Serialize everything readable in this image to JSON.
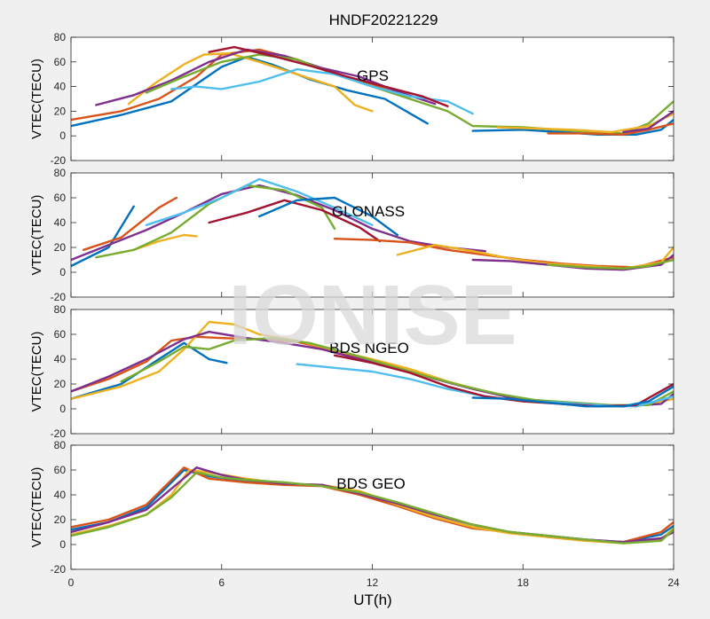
{
  "figure_title": "HNDF20221229",
  "x_label": "UT(h)",
  "watermark": "IONISE",
  "colors": [
    "#0072bd",
    "#d95319",
    "#edb120",
    "#7e2f8e",
    "#77ac30",
    "#4dbeee",
    "#a2142f"
  ],
  "chart_data": [
    {
      "type": "line",
      "title": "GPS",
      "xlabel": "",
      "ylabel": "VTEC(TECU)",
      "xlim": [
        0,
        24
      ],
      "ylim": [
        -20,
        80
      ],
      "xticks": [
        0,
        6,
        12,
        18,
        24
      ],
      "yticks": [
        -20,
        0,
        20,
        40,
        60,
        80
      ],
      "grid": false,
      "series": [
        {
          "x": [
            0,
            2,
            4,
            5,
            6,
            7,
            8,
            9.5,
            11,
            12.5,
            14.2
          ],
          "y": [
            8,
            17,
            28,
            42,
            56,
            64,
            58,
            46,
            37,
            30,
            10
          ]
        },
        {
          "x": [
            0,
            2,
            3.5,
            5,
            6,
            7.5,
            9,
            10.5,
            12,
            13.5
          ],
          "y": [
            13,
            20,
            30,
            48,
            66,
            70,
            62,
            50,
            42,
            30
          ]
        },
        {
          "x": [
            2.3,
            3.3,
            4.5,
            5.3,
            6.3,
            7.5,
            9,
            10.5,
            11.3,
            12
          ],
          "y": [
            26,
            42,
            58,
            66,
            67,
            60,
            50,
            40,
            25,
            20
          ]
        },
        {
          "x": [
            1,
            2.5,
            4,
            5.5,
            7,
            8.5,
            10,
            11.5,
            13,
            14.5
          ],
          "y": [
            25,
            33,
            45,
            60,
            70,
            65,
            55,
            48,
            36,
            26
          ]
        },
        {
          "x": [
            3,
            4.5,
            6,
            7.5,
            9,
            10.5,
            12,
            13.5,
            15,
            16,
            18,
            20,
            22,
            23,
            24
          ],
          "y": [
            35,
            48,
            60,
            66,
            62,
            50,
            40,
            30,
            20,
            8,
            7,
            4,
            2,
            10,
            28
          ]
        },
        {
          "x": [
            4,
            5,
            6,
            7.5,
            9,
            10.5,
            12,
            13.5,
            15,
            16
          ],
          "y": [
            38,
            40,
            38,
            44,
            54,
            50,
            40,
            32,
            28,
            18
          ]
        },
        {
          "x": [
            5.5,
            6.5,
            8,
            9.5,
            11,
            12.5,
            14,
            15
          ],
          "y": [
            68,
            72,
            65,
            57,
            48,
            40,
            32,
            24
          ]
        },
        {
          "x": [
            16,
            18,
            19.5,
            21,
            22.5,
            23.5,
            24
          ],
          "y": [
            4,
            5,
            3,
            1,
            1,
            5,
            13
          ]
        },
        {
          "x": [
            19,
            20.5,
            22,
            23,
            24
          ],
          "y": [
            2,
            2,
            1,
            5,
            10
          ]
        },
        {
          "x": [
            17,
            18.5,
            20,
            21.5,
            23,
            24
          ],
          "y": [
            7,
            6,
            5,
            3,
            8,
            18
          ]
        },
        {
          "x": [
            22,
            23,
            24
          ],
          "y": [
            3,
            6,
            20
          ]
        }
      ]
    },
    {
      "type": "line",
      "title": "GLONASS",
      "xlabel": "",
      "ylabel": "VTEC(TECU)",
      "xlim": [
        0,
        24
      ],
      "ylim": [
        -20,
        80
      ],
      "xticks": [
        0,
        6,
        12,
        18,
        24
      ],
      "yticks": [
        -20,
        0,
        20,
        40,
        60,
        80
      ],
      "grid": false,
      "series": [
        {
          "x": [
            0,
            1.5,
            2.5
          ],
          "y": [
            5,
            20,
            53
          ]
        },
        {
          "x": [
            0.5,
            2,
            3.5,
            4.2
          ],
          "y": [
            18,
            28,
            52,
            60
          ]
        },
        {
          "x": [
            2.5,
            3.5,
            4.5,
            5
          ],
          "y": [
            18,
            25,
            30,
            29
          ]
        },
        {
          "x": [
            0,
            1.5,
            3,
            4.5,
            6,
            7.5,
            9,
            10.5,
            12,
            13.5,
            15,
            16.5
          ],
          "y": [
            10,
            22,
            34,
            48,
            63,
            70,
            62,
            50,
            35,
            25,
            20,
            17
          ]
        },
        {
          "x": [
            1,
            2.5,
            4,
            5.5,
            7,
            8.5,
            10,
            10.5
          ],
          "y": [
            12,
            18,
            32,
            55,
            70,
            66,
            52,
            35
          ]
        },
        {
          "x": [
            3,
            4.5,
            6,
            7.5,
            9,
            10.5,
            12
          ],
          "y": [
            38,
            48,
            60,
            75,
            65,
            52,
            38
          ]
        },
        {
          "x": [
            5.5,
            7,
            8.5,
            10,
            11.5,
            12.3
          ],
          "y": [
            40,
            48,
            58,
            50,
            36,
            25
          ]
        },
        {
          "x": [
            7.5,
            9,
            10.5,
            12,
            13
          ],
          "y": [
            45,
            58,
            60,
            45,
            30
          ]
        },
        {
          "x": [
            10.5,
            12,
            13.5,
            15,
            16.5,
            18,
            19.5,
            21,
            22.5,
            24
          ],
          "y": [
            27,
            26,
            24,
            18,
            14,
            10,
            7,
            5,
            4,
            12
          ]
        },
        {
          "x": [
            13,
            14.5,
            16,
            17.5,
            19,
            20.5,
            22,
            23.5,
            24
          ],
          "y": [
            14,
            22,
            17,
            11,
            7,
            5,
            3,
            8,
            20
          ]
        },
        {
          "x": [
            16,
            17.5,
            19,
            20.5,
            22,
            23.5,
            24
          ],
          "y": [
            10,
            9,
            6,
            3,
            2,
            6,
            14
          ]
        },
        {
          "x": [
            19,
            20.5,
            22,
            23,
            24
          ],
          "y": [
            6,
            4,
            3,
            5,
            10
          ]
        }
      ]
    },
    {
      "type": "line",
      "title": "BDS NGEO",
      "xlabel": "",
      "ylabel": "VTEC(TECU)",
      "xlim": [
        0,
        24
      ],
      "ylim": [
        -20,
        80
      ],
      "xticks": [
        0,
        6,
        12,
        18,
        24
      ],
      "yticks": [
        -20,
        0,
        20,
        40,
        60,
        80
      ],
      "grid": false,
      "series": [
        {
          "x": [
            0,
            2,
            3.5,
            4.5,
            5.5,
            6.2
          ],
          "y": [
            8,
            20,
            40,
            53,
            40,
            37
          ]
        },
        {
          "x": [
            0,
            1.5,
            3,
            4,
            5,
            6,
            7.5,
            9,
            10.5,
            12,
            13.5,
            15
          ],
          "y": [
            14,
            24,
            38,
            55,
            58,
            57,
            56,
            54,
            47,
            38,
            30,
            22
          ]
        },
        {
          "x": [
            0,
            2,
            3.5,
            4.5,
            5.5,
            6.5,
            7.5,
            9,
            10.5,
            12,
            13.5,
            15,
            16.5,
            18,
            19.5,
            21,
            22.5,
            24
          ],
          "y": [
            8,
            18,
            30,
            48,
            70,
            68,
            60,
            55,
            47,
            40,
            32,
            22,
            14,
            7,
            5,
            3,
            2,
            8
          ]
        },
        {
          "x": [
            0,
            1.5,
            3,
            4.5,
            5.5,
            7,
            8.5,
            10,
            11.5,
            13,
            14.5,
            16,
            17.5,
            19,
            20.5,
            22,
            23.5,
            24
          ],
          "y": [
            14,
            26,
            40,
            56,
            62,
            57,
            53,
            48,
            40,
            33,
            24,
            16,
            9,
            6,
            4,
            2,
            4,
            12
          ]
        },
        {
          "x": [
            2,
            3.5,
            4.5,
            5.5,
            6.5,
            8,
            9.5,
            11,
            12.5,
            14,
            15.5,
            17,
            18.5,
            20,
            21.5,
            23,
            24
          ],
          "y": [
            22,
            38,
            50,
            48,
            55,
            57,
            53,
            45,
            36,
            27,
            19,
            12,
            7,
            5,
            3,
            3,
            14
          ]
        },
        {
          "x": [
            9,
            10.5,
            12,
            13.5,
            15,
            16.5,
            18,
            19.5,
            21,
            22.5,
            24
          ],
          "y": [
            36,
            33,
            30,
            24,
            16,
            10,
            6,
            5,
            3,
            2,
            10
          ]
        },
        {
          "x": [
            10.5,
            12,
            13.5,
            15,
            16.5,
            18,
            19.5,
            21,
            22.5,
            24
          ],
          "y": [
            43,
            37,
            29,
            18,
            10,
            6,
            4,
            2,
            3,
            20
          ]
        },
        {
          "x": [
            16,
            17.5,
            19,
            20.5,
            22,
            23,
            24
          ],
          "y": [
            9,
            8,
            5,
            2,
            2,
            6,
            18
          ]
        }
      ]
    },
    {
      "type": "line",
      "title": "BDS GEO",
      "xlabel": "",
      "ylabel": "VTEC(TECU)",
      "xlim": [
        0,
        24
      ],
      "ylim": [
        -20,
        80
      ],
      "xticks": [
        0,
        6,
        12,
        18,
        24
      ],
      "yticks": [
        -20,
        0,
        20,
        40,
        60,
        80
      ],
      "grid": false,
      "series": [
        {
          "x": [
            0,
            1.5,
            3,
            4,
            4.5,
            5.5,
            7,
            8.5,
            10,
            11.5,
            13,
            14.5,
            16,
            17.5,
            19,
            20.5,
            22,
            23.5,
            24
          ],
          "y": [
            12,
            18,
            30,
            50,
            60,
            55,
            51,
            49,
            48,
            42,
            32,
            22,
            14,
            10,
            7,
            4,
            2,
            8,
            15
          ]
        },
        {
          "x": [
            0,
            1.5,
            3,
            4,
            4.5,
            5.5,
            7,
            8.5,
            10,
            11.5,
            13,
            14.5,
            16,
            17.5,
            19,
            20.5,
            22,
            23.5,
            24
          ],
          "y": [
            14,
            20,
            32,
            52,
            62,
            53,
            50,
            48,
            47,
            40,
            31,
            21,
            13,
            10,
            6,
            3,
            2,
            10,
            18
          ]
        },
        {
          "x": [
            0,
            1.5,
            3,
            4,
            4.7,
            5.5,
            7,
            8.5,
            10,
            11.5,
            13,
            14.5,
            16,
            17.5,
            19,
            20.5,
            22,
            23.5,
            24
          ],
          "y": [
            8,
            15,
            24,
            40,
            60,
            58,
            53,
            49,
            48,
            43,
            32,
            22,
            14,
            9,
            6,
            3,
            1,
            4,
            13
          ]
        },
        {
          "x": [
            0,
            1.5,
            3,
            4,
            5,
            6,
            7,
            8.5,
            10,
            11.5,
            13,
            14.5,
            16,
            17.5,
            19,
            20.5,
            22,
            23.5,
            24
          ],
          "y": [
            10,
            18,
            28,
            45,
            62,
            56,
            52,
            49,
            48,
            41,
            33,
            24,
            16,
            10,
            7,
            4,
            2,
            5,
            10
          ]
        },
        {
          "x": [
            0,
            1.5,
            3,
            4,
            5,
            6,
            7,
            8.5,
            10,
            11.5,
            13,
            14.5,
            16,
            17.5,
            19,
            20.5,
            22,
            23.5,
            24
          ],
          "y": [
            7,
            14,
            24,
            38,
            58,
            54,
            52,
            50,
            47,
            42,
            34,
            25,
            16,
            10,
            7,
            4,
            1,
            3,
            12
          ]
        }
      ]
    }
  ]
}
